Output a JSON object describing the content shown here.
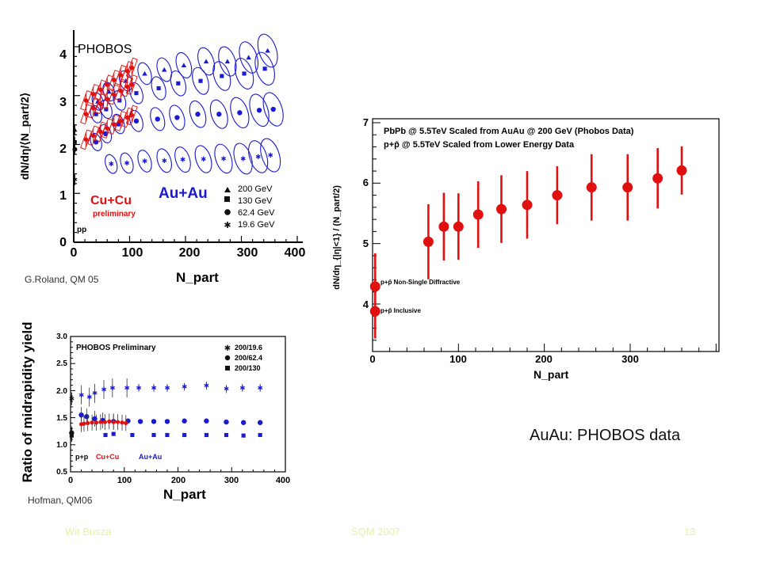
{
  "captions": {
    "roland": "G.Roland, QM 05",
    "hofman": "Hofman, QM06",
    "auau": "AuAu: PHOBOS data"
  },
  "footer": {
    "author": "Wit Busza",
    "event": "SQM 2007",
    "page": "13"
  },
  "chart_data": [
    {
      "type": "scatter",
      "ylabel": "dN/dη/⟨N_part/2⟩",
      "xlabel": "N_part",
      "xlim": [
        0,
        400
      ],
      "ylim": [
        0,
        4
      ],
      "x_ticks": [
        "0",
        "100",
        "200",
        "300",
        "400"
      ],
      "y_ticks": [
        "0",
        "1",
        "2",
        "3",
        "4"
      ],
      "annotations": {
        "phobos": "PHOBOS",
        "cucu": "Cu+Cu",
        "preliminary": "preliminary",
        "auau": "Au+Au",
        "pp": "pp"
      },
      "legend": [
        "200 GeV",
        "130 GeV",
        "62.4 GeV",
        "19.6 GeV"
      ],
      "series": [
        {
          "name": "200 GeV",
          "color": "#1a1ad0",
          "points": [
            [
              2,
              2.3
            ],
            [
              43,
              2.88
            ],
            [
              63,
              3.08
            ],
            [
              93,
              3.3
            ],
            [
              127,
              3.45
            ],
            [
              162,
              3.53
            ],
            [
              197,
              3.62
            ],
            [
              237,
              3.7
            ],
            [
              275,
              3.7
            ],
            [
              313,
              3.78
            ],
            [
              347,
              3.92
            ]
          ]
        },
        {
          "name": "130 GeV",
          "color": "#1a1ad0",
          "points": [
            [
              2,
              2.05
            ],
            [
              40,
              2.62
            ],
            [
              58,
              2.72
            ],
            [
              82,
              2.9
            ],
            [
              112,
              3.05
            ],
            [
              152,
              3.15
            ],
            [
              187,
              3.25
            ],
            [
              227,
              3.3
            ],
            [
              265,
              3.4
            ],
            [
              305,
              3.45
            ],
            [
              342,
              3.55
            ]
          ]
        },
        {
          "name": "62.4 GeV",
          "color": "#1a1ad0",
          "points": [
            [
              2,
              1.9
            ],
            [
              40,
              2.05
            ],
            [
              57,
              2.22
            ],
            [
              80,
              2.42
            ],
            [
              112,
              2.48
            ],
            [
              150,
              2.52
            ],
            [
              185,
              2.55
            ],
            [
              222,
              2.62
            ],
            [
              260,
              2.62
            ],
            [
              297,
              2.65
            ],
            [
              332,
              2.7
            ],
            [
              357,
              2.72
            ]
          ]
        },
        {
          "name": "19.6 GeV",
          "color": "#1a1ad0",
          "points": [
            [
              2,
              1.28
            ],
            [
              67,
              1.6
            ],
            [
              95,
              1.62
            ],
            [
              127,
              1.66
            ],
            [
              162,
              1.67
            ],
            [
              195,
              1.69
            ],
            [
              232,
              1.7
            ],
            [
              268,
              1.71
            ],
            [
              303,
              1.71
            ],
            [
              330,
              1.75
            ],
            [
              352,
              1.78
            ]
          ]
        },
        {
          "name": "Cu+Cu 200 GeV",
          "color": "#e01010",
          "points": [
            [
              22,
              2.9
            ],
            [
              35,
              3.03
            ],
            [
              48,
              3.12
            ],
            [
              60,
              3.22
            ],
            [
              72,
              3.32
            ],
            [
              84,
              3.42
            ],
            [
              96,
              3.5
            ],
            [
              104,
              3.57
            ]
          ]
        },
        {
          "name": "Cu+Cu 130 GeV",
          "color": "#e01010",
          "points": [
            [
              22,
              2.62
            ],
            [
              35,
              2.74
            ],
            [
              48,
              2.83
            ],
            [
              60,
              2.93
            ],
            [
              72,
              3.02
            ],
            [
              84,
              3.1
            ],
            [
              96,
              3.18
            ],
            [
              104,
              3.22
            ]
          ]
        },
        {
          "name": "Cu+Cu 62.4 GeV",
          "color": "#e01010",
          "points": [
            [
              22,
              2.1
            ],
            [
              35,
              2.18
            ],
            [
              48,
              2.26
            ],
            [
              60,
              2.33
            ],
            [
              72,
              2.41
            ],
            [
              84,
              2.48
            ],
            [
              96,
              2.55
            ],
            [
              104,
              2.6
            ]
          ]
        }
      ]
    },
    {
      "type": "scatter",
      "ylabel": "Ratio of midrapidity yield",
      "xlabel": "N_part",
      "xlim": [
        0,
        400
      ],
      "ylim": [
        0.5,
        3.0
      ],
      "x_ticks": [
        "0",
        "100",
        "200",
        "300",
        "400"
      ],
      "y_ticks": [
        "0.5",
        "1.0",
        "1.5",
        "2.0",
        "2.5",
        "3.0"
      ],
      "annotations": {
        "title": "PHOBOS Preliminary",
        "pp": "p+p",
        "cucu": "Cu+Cu",
        "auau": "Au+Au"
      },
      "legend": [
        "200/19.6",
        "200/62.4",
        "200/130"
      ],
      "series": [
        {
          "name": "200/19.6",
          "marker": "star",
          "color": "#1a1ad0",
          "points": [
            [
              20,
              1.92
            ],
            [
              35,
              1.88
            ],
            [
              45,
              1.95
            ],
            [
              62,
              2.02
            ],
            [
              78,
              2.05
            ],
            [
              105,
              2.05
            ],
            [
              127,
              2.05
            ],
            [
              155,
              2.05
            ],
            [
              180,
              2.05
            ],
            [
              212,
              2.07
            ],
            [
              253,
              2.09
            ],
            [
              290,
              2.03
            ],
            [
              320,
              2.05
            ],
            [
              353,
              2.05
            ]
          ]
        },
        {
          "name": "200/62.4",
          "marker": "circle",
          "color": "#1a1ad0",
          "points": [
            [
              20,
              1.55
            ],
            [
              30,
              1.52
            ],
            [
              45,
              1.48
            ],
            [
              60,
              1.45
            ],
            [
              80,
              1.43
            ],
            [
              107,
              1.44
            ],
            [
              130,
              1.43
            ],
            [
              155,
              1.43
            ],
            [
              180,
              1.43
            ],
            [
              212,
              1.44
            ],
            [
              253,
              1.44
            ],
            [
              290,
              1.42
            ],
            [
              322,
              1.41
            ],
            [
              353,
              1.41
            ]
          ]
        },
        {
          "name": "200/130",
          "marker": "square",
          "color": "#1a1ad0",
          "points": [
            [
              65,
              1.18
            ],
            [
              80,
              1.2
            ],
            [
              115,
              1.18
            ],
            [
              155,
              1.18
            ],
            [
              180,
              1.18
            ],
            [
              212,
              1.18
            ],
            [
              253,
              1.18
            ],
            [
              290,
              1.18
            ],
            [
              322,
              1.17
            ],
            [
              353,
              1.18
            ]
          ]
        },
        {
          "name": "Cu+Cu",
          "marker": "circle",
          "color": "#e01010",
          "points": [
            [
              20,
              1.38
            ],
            [
              25,
              1.39
            ],
            [
              32,
              1.4
            ],
            [
              40,
              1.41
            ],
            [
              48,
              1.41
            ],
            [
              56,
              1.42
            ],
            [
              64,
              1.42
            ],
            [
              72,
              1.43
            ],
            [
              80,
              1.42
            ],
            [
              88,
              1.42
            ],
            [
              96,
              1.41
            ],
            [
              103,
              1.4
            ]
          ]
        },
        {
          "name": "p+p",
          "marker": "mixed",
          "color": "#000000",
          "points": [
            [
              2,
              1.85
            ],
            [
              2,
              1.22
            ],
            [
              2,
              1.17
            ]
          ]
        }
      ]
    },
    {
      "type": "scatter",
      "ylabel": "dN/dη_{|η|<1} / (N_part/2)",
      "xlabel": "N_part",
      "xlim": [
        0,
        420
      ],
      "ylim": [
        3.3,
        7.0
      ],
      "x_ticks": [
        "0",
        "100",
        "200",
        "300"
      ],
      "y_ticks": [
        "4",
        "5",
        "6",
        "7"
      ],
      "legend": [
        "PbPb @ 5.5TeV Scaled from AuAu @ 200 GeV (Phobos Data)",
        "p+p̄ @ 5.5TeV Scaled from Lower Energy Data",
        "p+p̄ Non-Single Diffractive",
        "p+p̄ Inclusive"
      ],
      "series": [
        {
          "name": "PbPb @ 5.5TeV Scaled from AuAu @ 200 GeV (Phobos Data)",
          "color": "#e01010",
          "points": [
            [
              65,
              5.03
            ],
            [
              83,
              5.28
            ],
            [
              100,
              5.28
            ],
            [
              123,
              5.48
            ],
            [
              150,
              5.57
            ],
            [
              180,
              5.64
            ],
            [
              215,
              5.8
            ],
            [
              255,
              5.93
            ],
            [
              297,
              5.93
            ],
            [
              332,
              6.08
            ],
            [
              360,
              6.21
            ]
          ],
          "err": [
            0.62,
            0.56,
            0.55,
            0.55,
            0.56,
            0.56,
            0.48,
            0.55,
            0.55,
            0.5,
            0.4
          ]
        },
        {
          "name": "p+p̄ @ 5.5TeV Scaled from Lower Energy Data",
          "color": "#e01010",
          "points": [
            [
              3,
              4.29
            ],
            [
              3,
              3.88
            ]
          ],
          "err": [
            0.55,
            0.45
          ]
        }
      ]
    }
  ]
}
